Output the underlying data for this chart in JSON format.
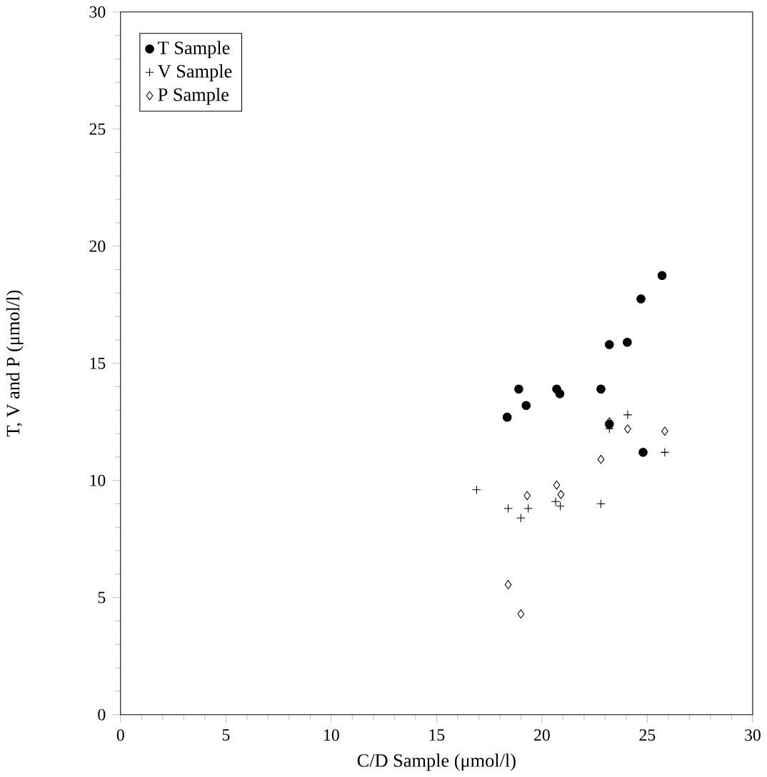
{
  "chart_data": {
    "type": "scatter",
    "xlabel": "C/D Sample (μmol/l)",
    "ylabel": "T, V and P (μmol/l)",
    "xlim": [
      0,
      30
    ],
    "ylim": [
      0,
      30
    ],
    "xticks": [
      0,
      5,
      10,
      15,
      20,
      25,
      30
    ],
    "yticks": [
      0,
      5,
      10,
      15,
      20,
      25,
      30
    ],
    "grid": false,
    "legend": "top left",
    "series": [
      {
        "name": "T Sample",
        "color": "#000000",
        "marker": "circle",
        "x": [
          25.7,
          24.7,
          23.2,
          24.05,
          18.9,
          20.7,
          20.85,
          22.8,
          19.25,
          18.35,
          23.2,
          24.8
        ],
        "values": [
          18.75,
          17.75,
          15.8,
          15.9,
          13.9,
          13.9,
          13.7,
          13.9,
          13.2,
          12.7,
          12.4,
          11.2
        ]
      },
      {
        "name": "V Sample",
        "color": "#000000",
        "marker": "cross",
        "x": [
          24.07,
          25.83,
          23.2,
          18.4,
          19.0,
          19.35,
          20.65,
          20.87,
          22.8,
          16.9
        ],
        "values": [
          12.8,
          11.2,
          12.2,
          8.8,
          8.4,
          8.8,
          9.1,
          8.9,
          9.0,
          9.6
        ]
      },
      {
        "name": "P Sample",
        "color": "#000000",
        "marker": "diamond",
        "x": [
          23.2,
          24.07,
          25.83,
          22.8,
          19.3,
          20.7,
          20.9,
          18.4,
          19.0
        ],
        "values": [
          12.5,
          12.2,
          12.1,
          10.9,
          9.35,
          9.8,
          9.4,
          5.55,
          4.3
        ]
      }
    ]
  }
}
